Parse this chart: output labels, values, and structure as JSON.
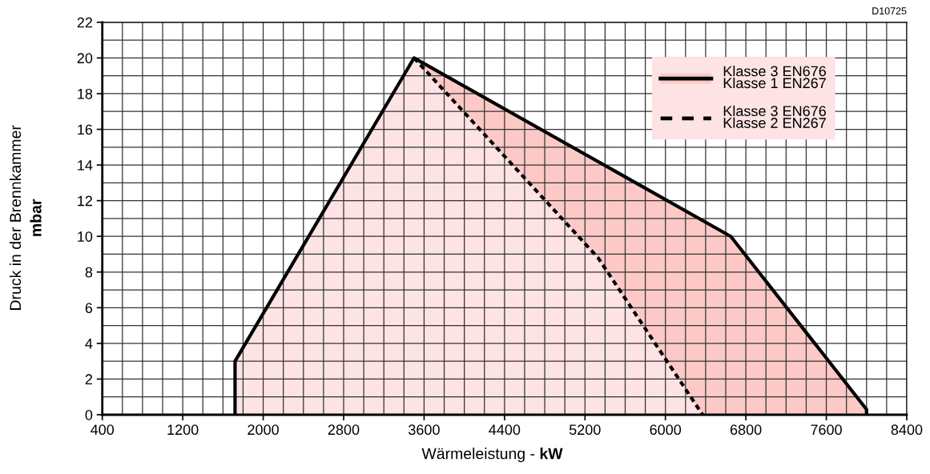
{
  "chart_data": {
    "type": "area",
    "xlabel": "Wärmeleistung - kW",
    "ylabel": "Druck in der Brennkammer\nmbar",
    "annotations": [
      "D10725"
    ],
    "series": [
      {
        "name": "Klasse 3 EN676\nKlasse 1 EN267",
        "color": "#fcc9c6",
        "line_style": "solid",
        "x": [
          1720,
          1720,
          3500,
          6650,
          8000,
          8000
        ],
        "values": [
          0,
          3,
          20,
          10,
          0.3,
          0
        ]
      },
      {
        "name": "Klasse 3 EN676\nKlasse 2 EN267",
        "color": "#fde3e3",
        "line_style": "dashed",
        "x": [
          1720,
          1720,
          3500,
          5330,
          6370
        ],
        "values": [
          0,
          3,
          20,
          8.8,
          0
        ]
      }
    ],
    "xlim": [
      400,
      8400
    ],
    "xticks": [
      400,
      1200,
      2000,
      2800,
      3600,
      4400,
      5200,
      6000,
      6800,
      7600,
      8400
    ],
    "ylim": [
      0,
      22
    ],
    "yticks": [
      0,
      2,
      4,
      6,
      8,
      10,
      12,
      14,
      16,
      18,
      20,
      22
    ],
    "grid": true,
    "legend": "top right"
  }
}
